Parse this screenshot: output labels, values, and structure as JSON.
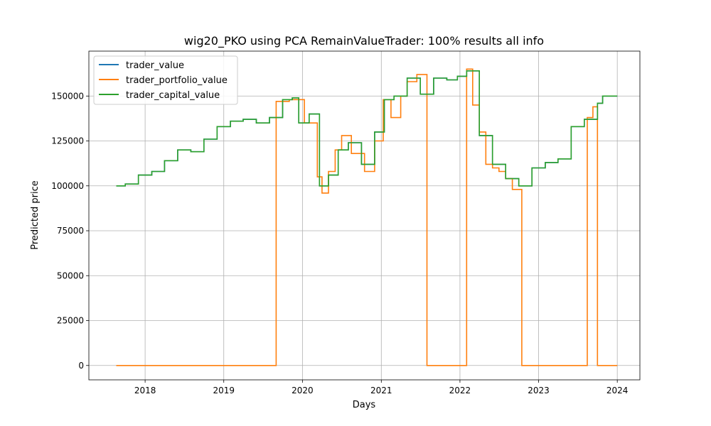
{
  "chart_data": {
    "type": "line",
    "title": "wig20_PKO using PCA RemainValueTrader: 100% results all info",
    "xlabel": "Days",
    "ylabel": "Predicted price",
    "xlim": [
      "2017-04-15",
      "2024-04-15"
    ],
    "ylim": [
      -8000,
      175000
    ],
    "xticks": [
      "2018",
      "2019",
      "2020",
      "2021",
      "2022",
      "2023",
      "2024"
    ],
    "xtick_dates": [
      "2018-01-01",
      "2019-01-01",
      "2020-01-01",
      "2021-01-01",
      "2022-01-01",
      "2023-01-01",
      "2024-01-01"
    ],
    "yticks": [
      0,
      25000,
      50000,
      75000,
      100000,
      125000,
      150000
    ],
    "ytick_labels": [
      "0",
      "25000",
      "50000",
      "75000",
      "100000",
      "125000",
      "150000"
    ],
    "grid": true,
    "legend": "top-left",
    "series": [
      {
        "name": "trader_value",
        "color": "#1f77b4",
        "points": [
          [
            "2017-08-20",
            100000
          ],
          [
            "2017-10-01",
            101000
          ],
          [
            "2017-12-01",
            106000
          ],
          [
            "2018-02-01",
            108000
          ],
          [
            "2018-04-01",
            114000
          ],
          [
            "2018-06-01",
            120000
          ],
          [
            "2018-08-01",
            119000
          ],
          [
            "2018-10-01",
            126000
          ],
          [
            "2018-12-01",
            133000
          ],
          [
            "2019-02-01",
            136000
          ],
          [
            "2019-04-01",
            137000
          ],
          [
            "2019-06-01",
            135000
          ],
          [
            "2019-08-01",
            138000
          ],
          [
            "2019-10-01",
            148000
          ],
          [
            "2019-11-15",
            149000
          ],
          [
            "2019-12-15",
            135000
          ],
          [
            "2020-02-01",
            140000
          ],
          [
            "2020-03-20",
            100000
          ],
          [
            "2020-05-01",
            106000
          ],
          [
            "2020-06-15",
            120000
          ],
          [
            "2020-08-01",
            124000
          ],
          [
            "2020-10-01",
            112000
          ],
          [
            "2020-12-01",
            130000
          ],
          [
            "2021-01-15",
            148000
          ],
          [
            "2021-03-01",
            150000
          ],
          [
            "2021-05-01",
            160000
          ],
          [
            "2021-07-01",
            151000
          ],
          [
            "2021-09-01",
            160000
          ],
          [
            "2021-11-01",
            159000
          ],
          [
            "2021-12-20",
            161000
          ],
          [
            "2022-02-01",
            164000
          ],
          [
            "2022-04-01",
            128000
          ],
          [
            "2022-06-01",
            112000
          ],
          [
            "2022-08-01",
            104000
          ],
          [
            "2022-10-01",
            100000
          ],
          [
            "2022-12-01",
            110000
          ],
          [
            "2023-02-01",
            113000
          ],
          [
            "2023-04-01",
            115000
          ],
          [
            "2023-06-01",
            133000
          ],
          [
            "2023-08-01",
            137000
          ],
          [
            "2023-10-01",
            146000
          ],
          [
            "2023-10-25",
            150000
          ],
          [
            "2024-01-01",
            150000
          ]
        ]
      },
      {
        "name": "trader_portfolio_value",
        "color": "#ff7f0e",
        "points": [
          [
            "2017-08-20",
            0
          ],
          [
            "2018-01-01",
            0
          ],
          [
            "2019-01-01",
            0
          ],
          [
            "2019-06-01",
            0
          ],
          [
            "2019-09-01",
            147000
          ],
          [
            "2019-11-01",
            148000
          ],
          [
            "2020-01-10",
            135000
          ],
          [
            "2020-03-10",
            105000
          ],
          [
            "2020-04-01",
            96000
          ],
          [
            "2020-05-01",
            108000
          ],
          [
            "2020-06-01",
            120000
          ],
          [
            "2020-07-01",
            128000
          ],
          [
            "2020-08-15",
            118000
          ],
          [
            "2020-10-15",
            108000
          ],
          [
            "2020-12-01",
            125000
          ],
          [
            "2021-01-10",
            148000
          ],
          [
            "2021-02-15",
            138000
          ],
          [
            "2021-04-01",
            150000
          ],
          [
            "2021-05-01",
            158000
          ],
          [
            "2021-06-15",
            162000
          ],
          [
            "2021-08-01",
            0
          ],
          [
            "2022-01-01",
            0
          ],
          [
            "2022-02-01",
            165000
          ],
          [
            "2022-03-01",
            145000
          ],
          [
            "2022-04-01",
            130000
          ],
          [
            "2022-05-01",
            112000
          ],
          [
            "2022-06-01",
            110000
          ],
          [
            "2022-07-01",
            108000
          ],
          [
            "2022-08-01",
            104000
          ],
          [
            "2022-09-01",
            98000
          ],
          [
            "2022-10-15",
            0
          ],
          [
            "2023-06-01",
            0
          ],
          [
            "2023-08-15",
            138000
          ],
          [
            "2023-09-10",
            144000
          ],
          [
            "2023-10-01",
            0
          ],
          [
            "2024-01-01",
            0
          ]
        ]
      },
      {
        "name": "trader_capital_value",
        "color": "#2ca02c",
        "points": [
          [
            "2017-08-20",
            100000
          ],
          [
            "2017-10-01",
            101000
          ],
          [
            "2017-12-01",
            106000
          ],
          [
            "2018-02-01",
            108000
          ],
          [
            "2018-04-01",
            114000
          ],
          [
            "2018-06-01",
            120000
          ],
          [
            "2018-08-01",
            119000
          ],
          [
            "2018-10-01",
            126000
          ],
          [
            "2018-12-01",
            133000
          ],
          [
            "2019-02-01",
            136000
          ],
          [
            "2019-04-01",
            137000
          ],
          [
            "2019-06-01",
            135000
          ],
          [
            "2019-08-01",
            138000
          ],
          [
            "2019-10-01",
            148000
          ],
          [
            "2019-11-15",
            149000
          ],
          [
            "2019-12-15",
            135000
          ],
          [
            "2020-02-01",
            140000
          ],
          [
            "2020-03-20",
            100000
          ],
          [
            "2020-05-01",
            106000
          ],
          [
            "2020-06-15",
            120000
          ],
          [
            "2020-08-01",
            124000
          ],
          [
            "2020-10-01",
            112000
          ],
          [
            "2020-12-01",
            130000
          ],
          [
            "2021-01-15",
            148000
          ],
          [
            "2021-03-01",
            150000
          ],
          [
            "2021-05-01",
            160000
          ],
          [
            "2021-07-01",
            151000
          ],
          [
            "2021-09-01",
            160000
          ],
          [
            "2021-11-01",
            159000
          ],
          [
            "2021-12-20",
            161000
          ],
          [
            "2022-02-01",
            164000
          ],
          [
            "2022-04-01",
            128000
          ],
          [
            "2022-06-01",
            112000
          ],
          [
            "2022-08-01",
            104000
          ],
          [
            "2022-10-01",
            100000
          ],
          [
            "2022-12-01",
            110000
          ],
          [
            "2023-02-01",
            113000
          ],
          [
            "2023-04-01",
            115000
          ],
          [
            "2023-06-01",
            133000
          ],
          [
            "2023-08-01",
            137000
          ],
          [
            "2023-10-01",
            146000
          ],
          [
            "2023-10-25",
            150000
          ],
          [
            "2024-01-01",
            150000
          ]
        ]
      }
    ]
  }
}
